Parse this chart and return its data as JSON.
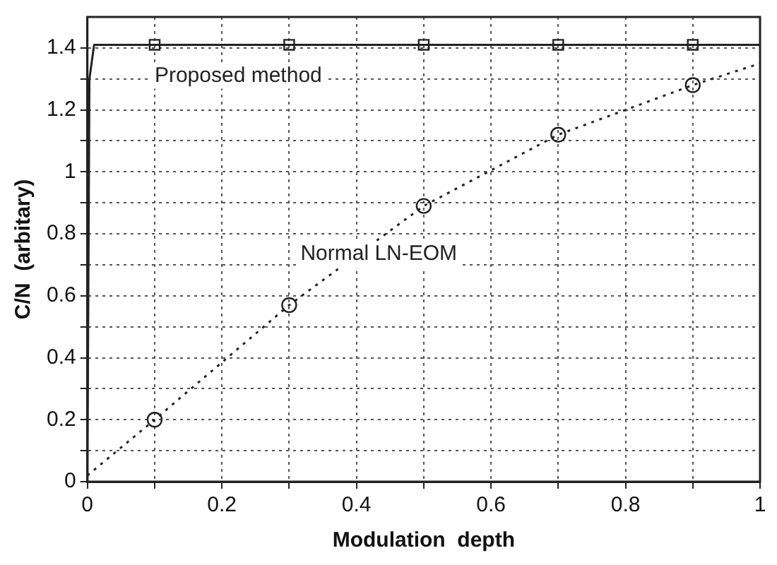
{
  "chart_data": {
    "type": "line",
    "xlabel": "Modulation  depth",
    "ylabel": "C/N  (arbitary)",
    "xlim": [
      0,
      1
    ],
    "ylim": [
      0,
      1.5
    ],
    "xticks": [
      0,
      {
        "value": 0.1,
        "label": null
      },
      0.2,
      {
        "value": 0.3,
        "label": null
      },
      0.4,
      {
        "value": 0.5,
        "label": null
      },
      0.6,
      {
        "value": 0.7,
        "label": null
      },
      0.8,
      {
        "value": 0.9,
        "label": null
      },
      1
    ],
    "yticks": [
      0,
      {
        "value": 0.1,
        "label": null
      },
      0.2,
      {
        "value": 0.3,
        "label": null
      },
      0.4,
      {
        "value": 0.5,
        "label": null
      },
      0.6,
      {
        "value": 0.7,
        "label": null
      },
      0.8,
      {
        "value": 0.9,
        "label": null
      },
      1,
      {
        "value": 1.1,
        "label": null
      },
      1.2,
      {
        "value": 1.3,
        "label": null
      },
      1.4
    ],
    "grid": true,
    "legend": false,
    "series": [
      {
        "name": "Proposed method",
        "color": "#222222",
        "line_style": "solid",
        "marker": "none",
        "x": [
          0,
          0.003,
          0.01,
          0.1,
          0.3,
          0.5,
          0.7,
          0.9,
          1
        ],
        "values": [
          0,
          1.3,
          1.41,
          1.41,
          1.41,
          1.41,
          1.41,
          1.41,
          1.41
        ]
      },
      {
        "type": "scatter",
        "color": "#222222",
        "marker": "square",
        "x": [
          0.1,
          0.3,
          0.5,
          0.7,
          0.9
        ],
        "values": [
          1.41,
          1.41,
          1.41,
          1.41,
          1.41
        ]
      },
      {
        "name": "Normal LN-EOM",
        "color": "#222222",
        "line_style": "dotted",
        "marker": "none",
        "x": [
          0,
          0.1,
          0.3,
          0.5,
          0.7,
          0.9,
          1
        ],
        "values": [
          0.02,
          0.2,
          0.57,
          0.89,
          1.12,
          1.28,
          1.35
        ]
      },
      {
        "type": "scatter",
        "color": "#222222",
        "marker": "circle",
        "x": [
          0.1,
          0.3,
          0.5,
          0.7,
          0.9
        ],
        "values": [
          0.2,
          0.57,
          0.89,
          1.12,
          1.28
        ]
      }
    ]
  }
}
